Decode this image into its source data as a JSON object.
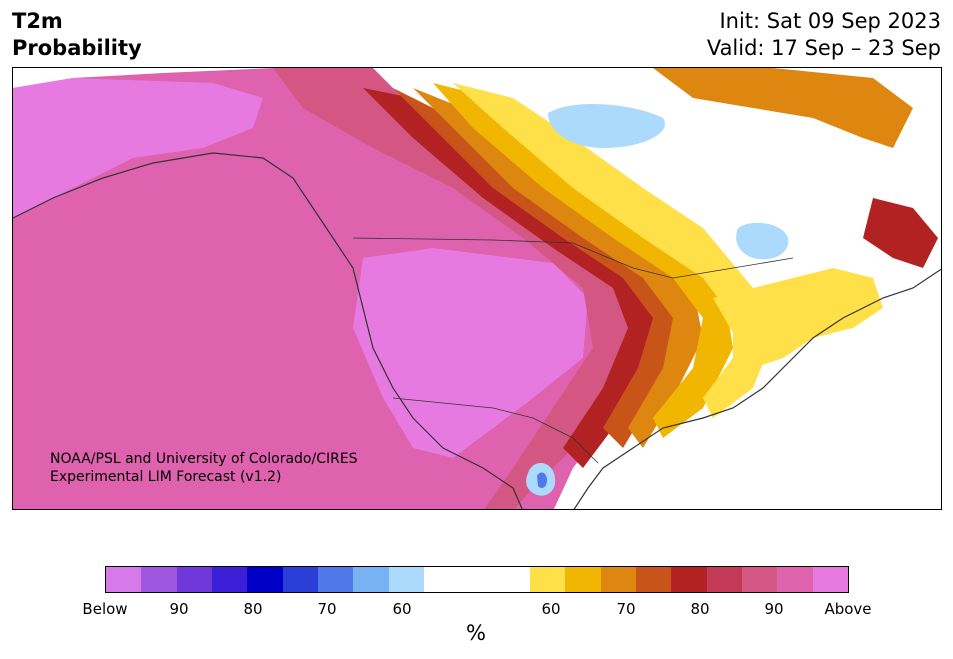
{
  "title": {
    "left_line1": "T2m",
    "left_line2": "Probability",
    "init": "Init: Sat 09 Sep 2023",
    "valid": "Valid: 17 Sep – 23 Sep"
  },
  "credit": {
    "line1": "NOAA/PSL and University of Colorado/CIRES",
    "line2": "Experimental LIM Forecast (v1.2)"
  },
  "colorbar": {
    "unit": "%",
    "tick_labels": [
      "Below",
      "90",
      "80",
      "70",
      "60",
      "60",
      "70",
      "80",
      "90",
      "Above"
    ],
    "colors": [
      "#d57ae8",
      "#9f57e2",
      "#7038db",
      "#3b1ed6",
      "#0000c8",
      "#2a3fd8",
      "#4f78e8",
      "#77b2f3",
      "#acdafc",
      "#ffffff",
      "#ffe049",
      "#f1b601",
      "#dd8711",
      "#c95419",
      "#b22222",
      "#c23a55",
      "#d35683",
      "#de62ad",
      "#e67ae0"
    ]
  },
  "map": {
    "region": "North America",
    "colors": {
      "land": "#ffffff",
      "water": "#ffffff",
      "border": "#333333"
    }
  }
}
